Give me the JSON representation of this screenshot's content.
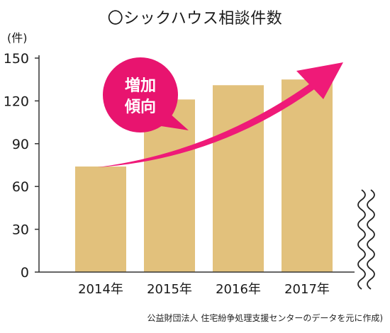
{
  "chart_data": {
    "type": "bar",
    "title": "〇シックハウス相談件数",
    "y_unit_label": "(件)",
    "categories": [
      "2014年",
      "2015年",
      "2016年",
      "2017年"
    ],
    "values": [
      74,
      121,
      131,
      135
    ],
    "ylim": [
      0,
      150
    ],
    "y_ticks": [
      "0",
      "30",
      "60",
      "90",
      "120",
      "150"
    ],
    "y_tick_values": [
      0,
      30,
      60,
      90,
      120,
      150
    ],
    "grid": false,
    "legend": "none",
    "annotation": {
      "text_line1": "増加",
      "text_line2": "傾向",
      "description": "upward trend arrow"
    },
    "colors": {
      "bar": "#e2c17c",
      "arrow": "#ef1a78",
      "bubble": "#e8146f",
      "axis": "#333333"
    },
    "source": "公益財団法人 住宅紛争処理支援センターのデータを元に作成)"
  }
}
